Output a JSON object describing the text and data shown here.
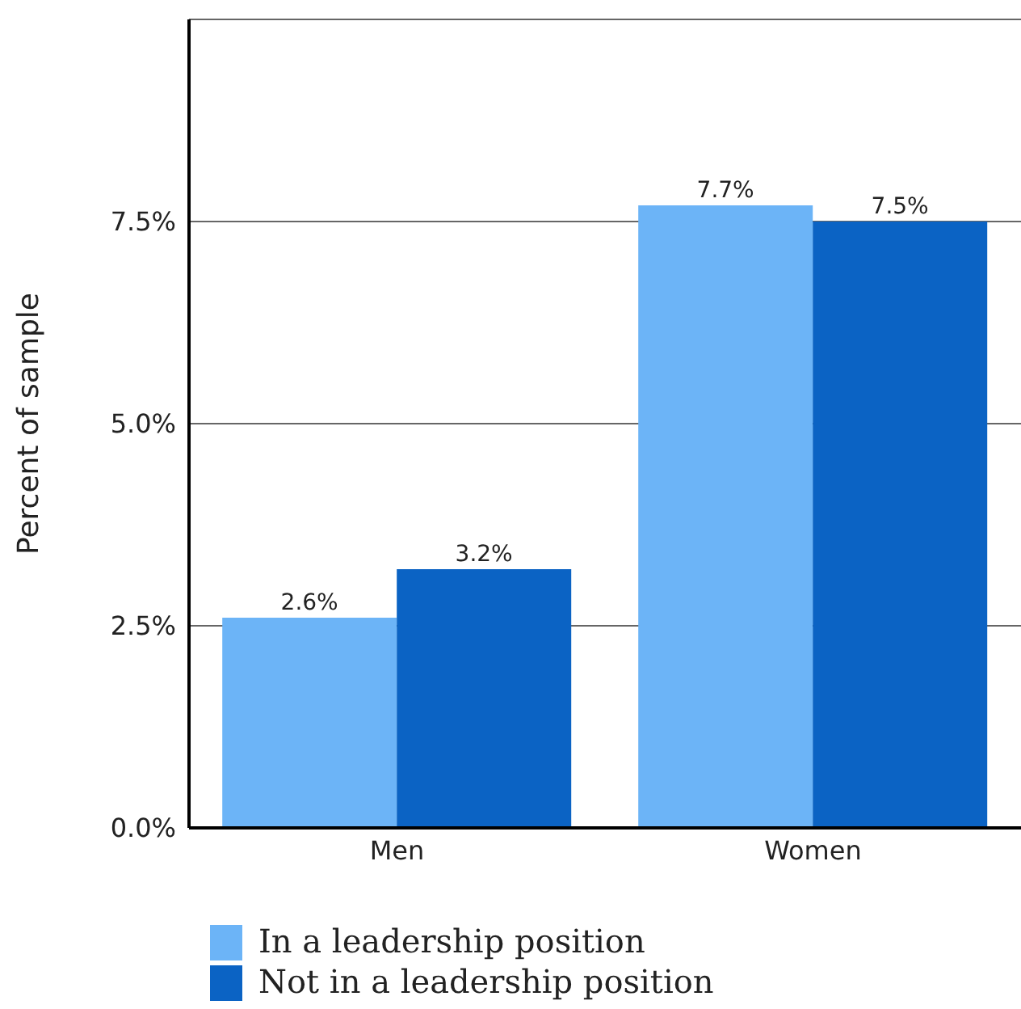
{
  "chart_data": {
    "type": "bar",
    "categories": [
      "Men",
      "Women"
    ],
    "ylabel": "Percent of sample",
    "series": [
      {
        "name": "In a leadership position",
        "color": "#6cb4f7",
        "values": [
          2.6,
          7.7
        ],
        "value_labels": [
          "2.6%",
          "7.7%"
        ]
      },
      {
        "name": "Not in a leadership position",
        "color": "#0b63c4",
        "values": [
          3.2,
          7.5
        ],
        "value_labels": [
          "3.2%",
          "7.5%"
        ]
      }
    ],
    "ylim": [
      0,
      10
    ],
    "yticks": [
      {
        "value": 0,
        "label": "0.0%"
      },
      {
        "value": 2.5,
        "label": "2.5%"
      },
      {
        "value": 5,
        "label": "5.0%"
      },
      {
        "value": 7.5,
        "label": "7.5%"
      }
    ],
    "grid": "y",
    "legend": "bottom"
  }
}
